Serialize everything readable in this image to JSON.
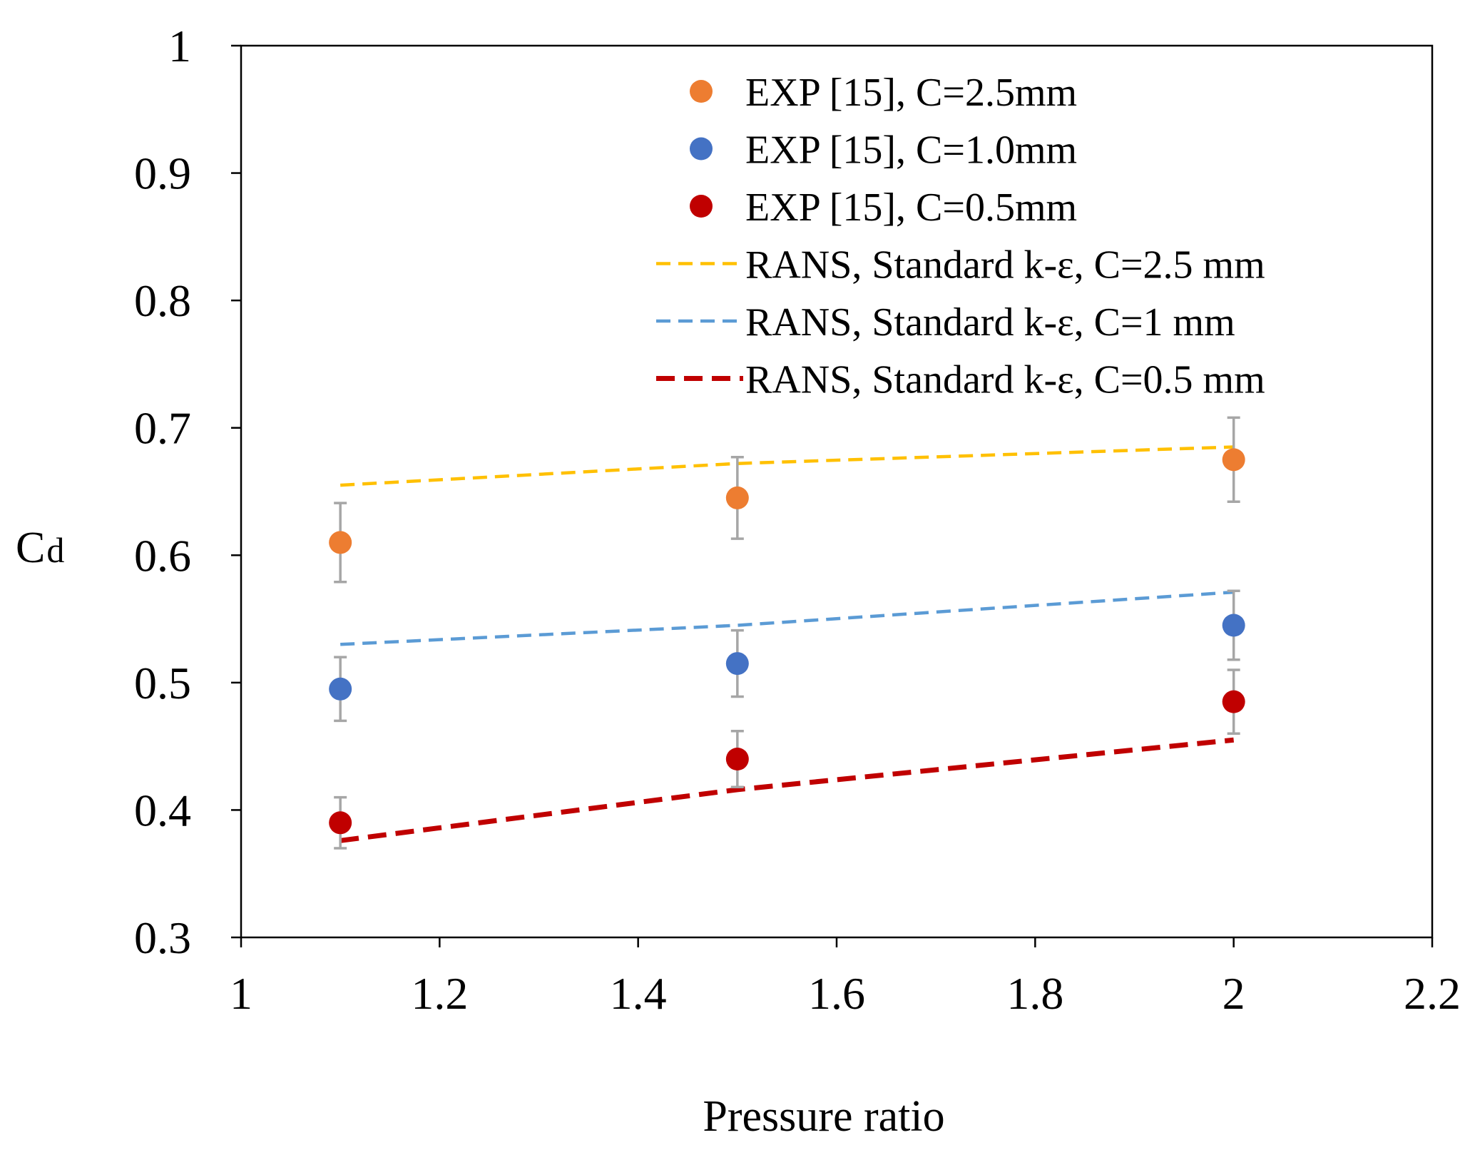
{
  "chart_data": {
    "type": "scatter",
    "title": "",
    "xlabel": "Pressure ratio",
    "ylabel": "C",
    "ylabel_sub": "d",
    "xlim": [
      1,
      2.2
    ],
    "ylim": [
      0.3,
      1
    ],
    "xticks": [
      1,
      1.2,
      1.4,
      1.6,
      1.8,
      2,
      2.2
    ],
    "xtick_labels": [
      "1",
      "1.2",
      "1.4",
      "1.6",
      "1.8",
      "2",
      "2.2"
    ],
    "yticks": [
      0.3,
      0.4,
      0.5,
      0.6,
      0.7,
      0.8,
      0.9,
      1
    ],
    "ytick_labels": [
      "0.3",
      "0.4",
      "0.5",
      "0.6",
      "0.7",
      "0.8",
      "0.9",
      "1"
    ],
    "grid": false,
    "legend_position": "top-right",
    "errorbar_color": "#a6a6a6",
    "series": [
      {
        "name": "EXP [15], C=2.5mm",
        "kind": "points",
        "color": "#ed7d31",
        "x": [
          1.1,
          1.5,
          2.0
        ],
        "y": [
          0.61,
          0.645,
          0.675
        ],
        "err": [
          0.031,
          0.032,
          0.033
        ]
      },
      {
        "name": "EXP [15], C=1.0mm",
        "kind": "points",
        "color": "#4472c4",
        "x": [
          1.1,
          1.5,
          2.0
        ],
        "y": [
          0.495,
          0.515,
          0.545
        ],
        "err": [
          0.025,
          0.026,
          0.027
        ]
      },
      {
        "name": "EXP [15], C=0.5mm",
        "kind": "points",
        "color": "#c00000",
        "x": [
          1.1,
          1.5,
          2.0
        ],
        "y": [
          0.39,
          0.44,
          0.485
        ],
        "err": [
          0.02,
          0.022,
          0.025
        ]
      },
      {
        "name": "RANS, Standard k-ε, C=2.5 mm",
        "kind": "dashed",
        "color": "#ffc000",
        "x": [
          1.1,
          1.5,
          2.0
        ],
        "y": [
          0.655,
          0.672,
          0.685
        ]
      },
      {
        "name": "RANS, Standard k-ε, C=1 mm",
        "kind": "dashed",
        "color": "#5b9bd5",
        "x": [
          1.1,
          1.5,
          2.0
        ],
        "y": [
          0.53,
          0.545,
          0.571
        ]
      },
      {
        "name": "RANS, Standard k-ε, C=0.5 mm",
        "kind": "dashed-thick",
        "color": "#c00000",
        "x": [
          1.1,
          1.5,
          2.0
        ],
        "y": [
          0.376,
          0.416,
          0.455
        ]
      }
    ]
  }
}
